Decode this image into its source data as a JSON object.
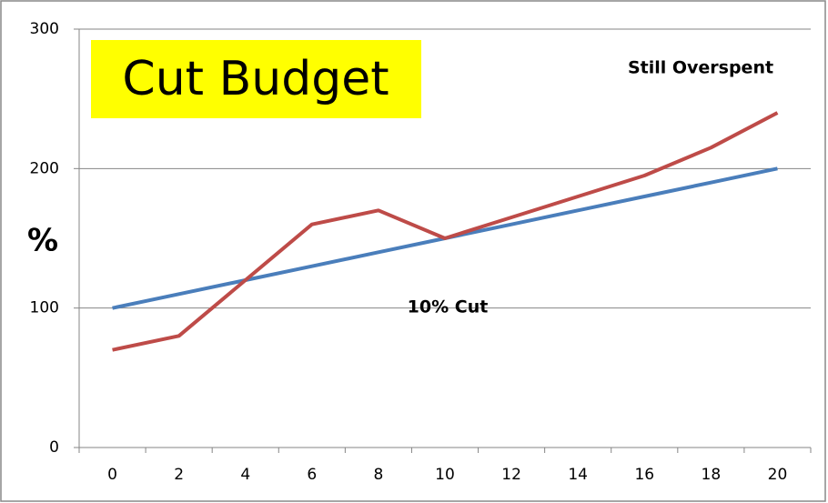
{
  "chart_data": {
    "type": "line",
    "title": "Cut Budget",
    "ylabel": "%",
    "annotations": [
      "Still Overspent",
      "10% Cut"
    ],
    "x": [
      0,
      2,
      4,
      6,
      8,
      10,
      12,
      14,
      16,
      18,
      20
    ],
    "xlim": [
      -1,
      21
    ],
    "xticks": [
      0,
      2,
      4,
      6,
      8,
      10,
      12,
      14,
      16,
      18,
      20
    ],
    "ylim": [
      0,
      300
    ],
    "yticks": [
      0,
      100,
      200,
      300
    ],
    "grid": true,
    "title_background": "#ffff00",
    "series": [
      {
        "color": "#4a7ebb",
        "values": [
          100,
          110,
          120,
          130,
          140,
          150,
          160,
          170,
          180,
          190,
          200
        ]
      },
      {
        "color": "#be4b48",
        "values": [
          70,
          80,
          120,
          160,
          170,
          150,
          165,
          180,
          195,
          215,
          240
        ]
      }
    ]
  }
}
